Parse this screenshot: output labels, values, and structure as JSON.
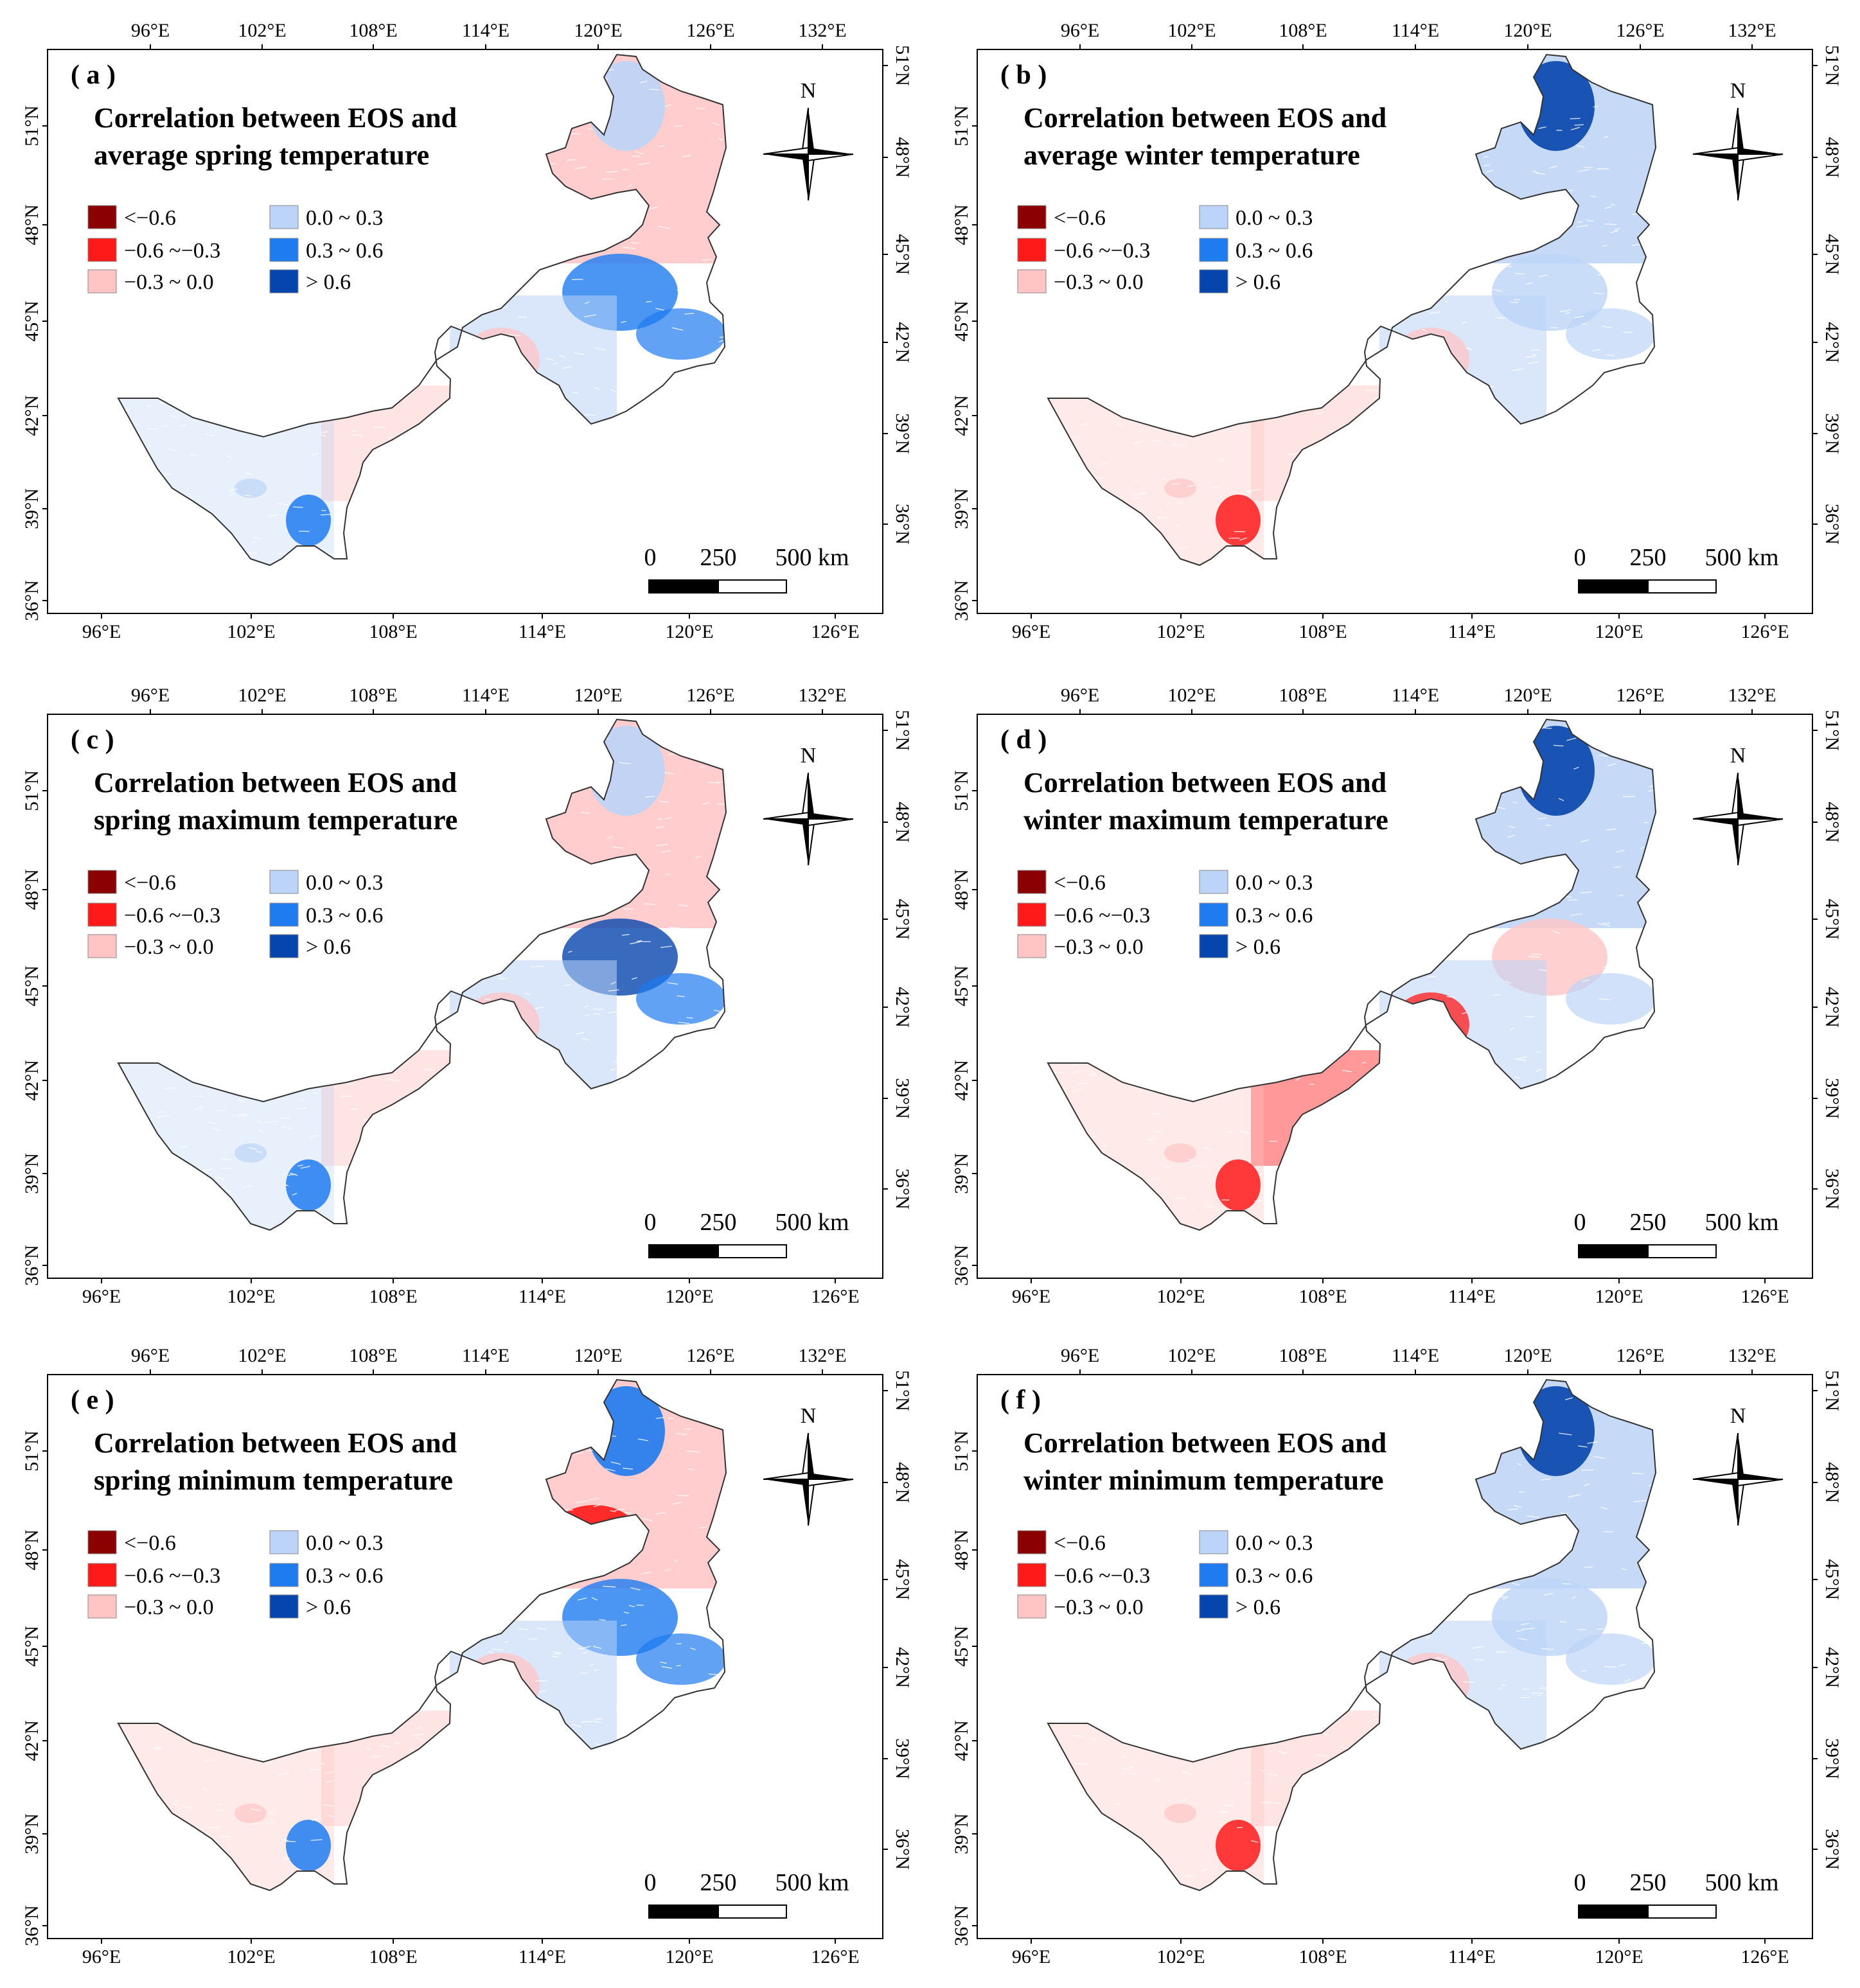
{
  "colors": {
    "lt_neg06": "#8b0000",
    "neg06_neg03": "#ff1a1a",
    "neg03_0": "#ffc4c4",
    "0_03": "#bcd4f7",
    "03_06": "#1e7bf0",
    "gt_06": "#0645ad"
  },
  "axes": {
    "lon_top": [
      "96°E",
      "102°E",
      "108°E",
      "114°E",
      "120°E",
      "126°E",
      "132°E"
    ],
    "lon_bottom": [
      "96°E",
      "102°E",
      "108°E",
      "114°E",
      "120°E",
      "126°E"
    ],
    "lat_left": [
      "51°N",
      "48°N",
      "45°N",
      "42°N",
      "39°N",
      "36°N"
    ],
    "lat_right": [
      "51°N",
      "48°N",
      "45°N",
      "42°N",
      "39°N",
      "36°N"
    ]
  },
  "legend": {
    "items": [
      {
        "key": "lt_neg06",
        "label": "<−0.6"
      },
      {
        "key": "neg06_neg03",
        "label": "−0.6 ~−0.3"
      },
      {
        "key": "neg03_0",
        "label": "−0.3 ~ 0.0"
      },
      {
        "key": "0_03",
        "label": "0.0 ~ 0.3"
      },
      {
        "key": "03_06",
        "label": "0.3 ~ 0.6"
      },
      {
        "key": "gt_06",
        "label": "> 0.6"
      }
    ]
  },
  "compass": {
    "label": "N"
  },
  "scale_bar": {
    "labels": [
      "0",
      "250",
      "500 km"
    ]
  },
  "panels": [
    {
      "id": "a",
      "letter": "( a )",
      "title1": "Correlation between EOS and",
      "title2": "average spring  temperature",
      "pattern": {
        "north": "neg03_0",
        "northTip": "0_03",
        "northHot": "",
        "mid": "03_06",
        "east": "03_06",
        "west": "0_03",
        "southwest": "03_06",
        "arch": "neg03_0"
      }
    },
    {
      "id": "b",
      "letter": "( b )",
      "title1": "Correlation between EOS and",
      "title2": "average winter temperature",
      "pattern": {
        "north": "0_03",
        "northTip": "gt_06",
        "northHot": "",
        "mid": "0_03",
        "east": "0_03",
        "west": "neg03_0",
        "southwest": "neg06_neg03",
        "arch": "neg03_0"
      }
    },
    {
      "id": "c",
      "letter": "( c )",
      "title1": "Correlation between EOS and",
      "title2": "spring maximum temperature",
      "pattern": {
        "north": "neg03_0",
        "northTip": "0_03",
        "northHot": "",
        "mid": "gt_06",
        "east": "03_06",
        "west": "0_03",
        "southwest": "03_06",
        "arch": "neg03_0"
      }
    },
    {
      "id": "d",
      "letter": "( d )",
      "title1": "Correlation between EOS and",
      "title2": "winter maximum temperature",
      "pattern": {
        "north": "0_03",
        "northTip": "gt_06",
        "northHot": "",
        "mid": "neg03_0",
        "east": "0_03",
        "west": "neg03_0",
        "southwest": "neg06_neg03",
        "arch": "neg06_neg03"
      }
    },
    {
      "id": "e",
      "letter": "( e )",
      "title1": "Correlation between EOS and",
      "title2": "spring minimum temperature",
      "pattern": {
        "north": "neg03_0",
        "northTip": "03_06",
        "northHot": "neg06_neg03",
        "mid": "03_06",
        "east": "03_06",
        "west": "neg03_0",
        "southwest": "03_06",
        "arch": "neg03_0"
      }
    },
    {
      "id": "f",
      "letter": "( f )",
      "title1": "Correlation between EOS and",
      "title2": "winter minimum temperature",
      "pattern": {
        "north": "0_03",
        "northTip": "gt_06",
        "northHot": "",
        "mid": "0_03",
        "east": "0_03",
        "west": "neg03_0",
        "southwest": "neg06_neg03",
        "arch": "neg03_0"
      }
    }
  ]
}
